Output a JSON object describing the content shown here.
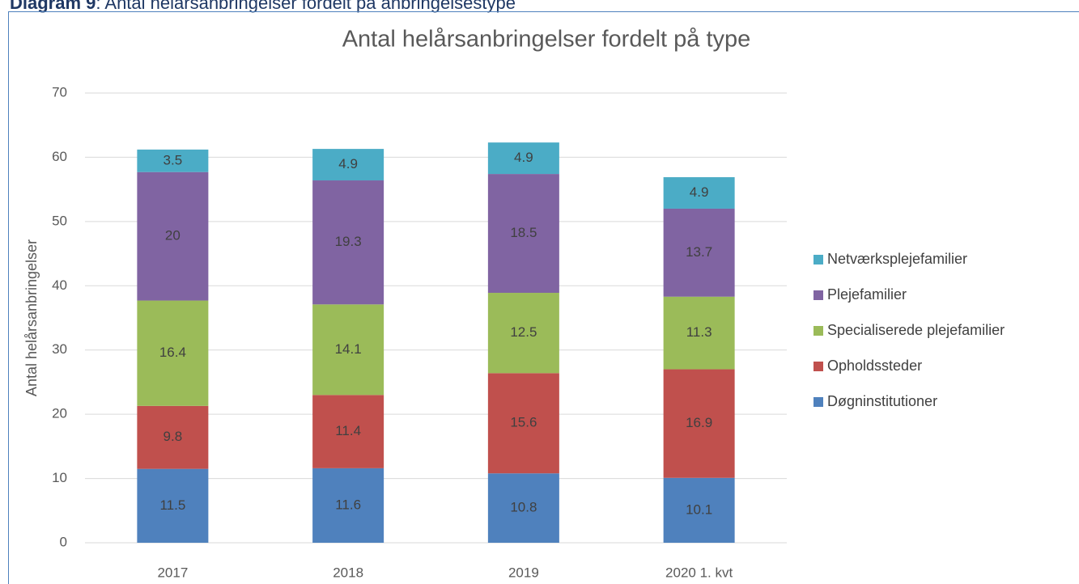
{
  "caption": {
    "label": "Diagram 9",
    "text": ": Antal helårsanbringelser fordelt på anbringelsestype"
  },
  "chart_data": {
    "type": "stacked_bar",
    "title": "Antal helårsanbringelser fordelt på type",
    "y_label": "Antal helårsanbringelser",
    "categories": [
      "2017",
      "2018",
      "2019",
      "2020 1. kvt"
    ],
    "series": [
      {
        "name": "Døgninstitutioner",
        "color": "#4f81bd",
        "values": [
          11.5,
          11.6,
          10.8,
          10.1
        ]
      },
      {
        "name": "Opholdssteder",
        "color": "#c0504d",
        "values": [
          9.8,
          11.4,
          15.6,
          16.9
        ]
      },
      {
        "name": "Specialiserede plejefamilier",
        "color": "#9bbb59",
        "values": [
          16.4,
          14.1,
          12.5,
          11.3
        ]
      },
      {
        "name": "Plejefamilier",
        "color": "#8064a2",
        "values": [
          20,
          19.3,
          18.5,
          13.7
        ]
      },
      {
        "name": "Netværksplejefamilier",
        "color": "#4bacc6",
        "values": [
          3.5,
          4.9,
          4.9,
          4.9
        ]
      }
    ],
    "ylim": [
      0,
      70
    ],
    "yticks": [
      0,
      10,
      20,
      30,
      40,
      50,
      60,
      70
    ],
    "grid": true,
    "legend": "right"
  }
}
